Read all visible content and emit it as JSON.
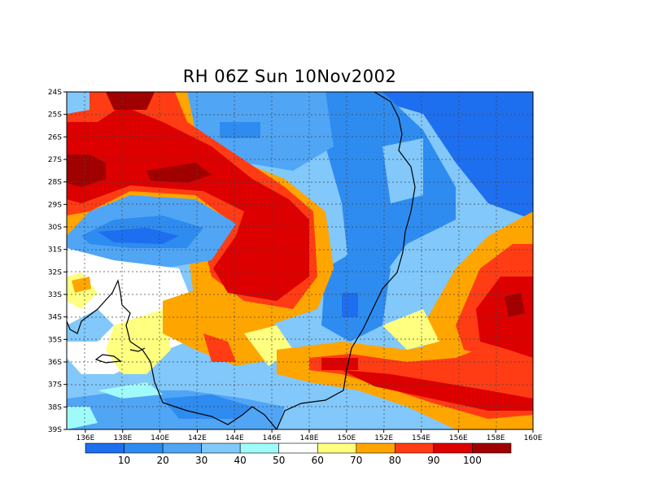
{
  "title": "RH 06Z Sun 10Nov2002",
  "axes": {
    "x_ticks": [
      "136E",
      "138E",
      "140E",
      "142E",
      "144E",
      "146E",
      "148E",
      "150E",
      "152E",
      "154E",
      "156E",
      "158E",
      "160E"
    ],
    "y_ticks": [
      "24S",
      "25S",
      "26S",
      "27S",
      "28S",
      "29S",
      "30S",
      "31S",
      "32S",
      "33S",
      "34S",
      "35S",
      "36S",
      "37S",
      "38S",
      "39S"
    ],
    "lon_range": [
      135,
      160
    ],
    "lat_range": [
      -39,
      -24
    ],
    "grid": true
  },
  "legend": {
    "labels": [
      "10",
      "20",
      "30",
      "40",
      "50",
      "60",
      "70",
      "80",
      "90",
      "100"
    ],
    "colors": [
      "#1e6ef0",
      "#2e8cf0",
      "#50a5f5",
      "#82c8fa",
      "#a0fafa",
      "#ffffff",
      "#ffff80",
      "#ffa500",
      "#ff3c14",
      "#dc0000",
      "#a00000"
    ]
  },
  "chart_data": {
    "type": "heatmap",
    "variable": "RH",
    "time": "06Z Sun 10Nov2002"
  }
}
